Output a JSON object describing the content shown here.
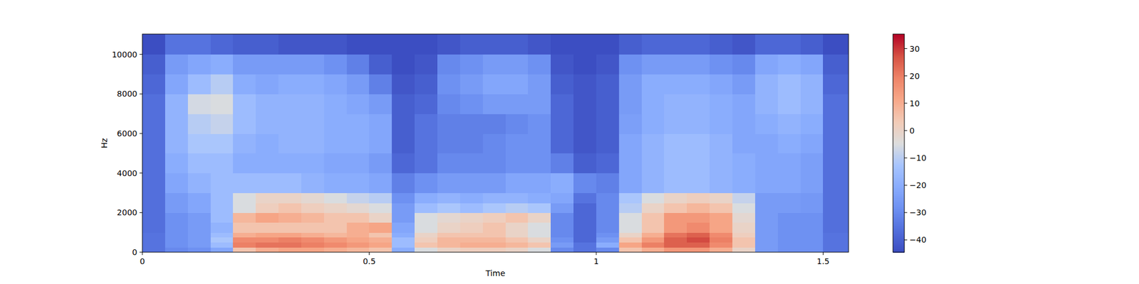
{
  "chart_data": {
    "type": "heatmap",
    "xlabel": "Time",
    "ylabel": "Hz",
    "color": "coolwarm",
    "xlim": [
      0,
      1.556
    ],
    "xticks": [
      0,
      0.5,
      1,
      1.5
    ],
    "ylim": [
      0,
      11025
    ],
    "yticks": [
      0,
      2000,
      4000,
      6000,
      8000,
      10000
    ],
    "x_edges": [
      0,
      0.05,
      0.1,
      0.15,
      0.2,
      0.25,
      0.3,
      0.35,
      0.4,
      0.45,
      0.5,
      0.55,
      0.6,
      0.65,
      0.7,
      0.75,
      0.8,
      0.85,
      0.9,
      0.95,
      1.0,
      1.05,
      1.1,
      1.15,
      1.2,
      1.25,
      1.3,
      1.35,
      1.4,
      1.45,
      1.5,
      1.556
    ],
    "y_edges": [
      0,
      250,
      500,
      750,
      1000,
      1500,
      2000,
      2500,
      3000,
      4000,
      5000,
      6000,
      7000,
      8000,
      9000,
      10000,
      11025
    ],
    "values": [
      [
        -35,
        -30,
        -28,
        -22,
        5,
        10,
        12,
        12,
        10,
        8,
        5,
        -20,
        -5,
        0,
        2,
        2,
        0,
        -5,
        -30,
        -35,
        -30,
        5,
        10,
        15,
        15,
        10,
        0,
        -25,
        -28,
        -28,
        -35
      ],
      [
        -35,
        -28,
        -25,
        -15,
        20,
        22,
        22,
        20,
        18,
        15,
        12,
        -15,
        5,
        8,
        10,
        10,
        8,
        5,
        -25,
        -35,
        -20,
        12,
        20,
        25,
        25,
        18,
        5,
        -25,
        -28,
        -28,
        -35
      ],
      [
        -35,
        -28,
        -25,
        -12,
        18,
        18,
        20,
        18,
        15,
        12,
        10,
        -15,
        2,
        8,
        8,
        8,
        5,
        0,
        -28,
        -38,
        -25,
        5,
        15,
        25,
        28,
        20,
        5,
        -25,
        -28,
        -28,
        -35
      ],
      [
        -35,
        -28,
        -25,
        -15,
        10,
        12,
        12,
        10,
        8,
        10,
        5,
        -20,
        0,
        5,
        5,
        5,
        0,
        -5,
        -30,
        -38,
        -28,
        0,
        10,
        22,
        25,
        18,
        2,
        -25,
        -28,
        -28,
        -35
      ],
      [
        -36,
        -28,
        -25,
        -18,
        5,
        5,
        5,
        5,
        5,
        10,
        12,
        -22,
        -5,
        0,
        2,
        5,
        0,
        -5,
        -30,
        -38,
        -30,
        -5,
        5,
        15,
        18,
        12,
        0,
        -25,
        -28,
        -28,
        -36
      ],
      [
        -36,
        -28,
        -25,
        -15,
        8,
        12,
        10,
        8,
        5,
        5,
        0,
        -25,
        -5,
        -2,
        0,
        2,
        5,
        0,
        -30,
        -38,
        -30,
        -5,
        5,
        15,
        15,
        12,
        -2,
        -25,
        -28,
        -28,
        -36
      ],
      [
        -36,
        -25,
        -22,
        -15,
        -5,
        2,
        5,
        2,
        0,
        -2,
        -5,
        -25,
        -15,
        -12,
        -15,
        -12,
        -10,
        -12,
        -25,
        -38,
        -30,
        -10,
        0,
        5,
        8,
        5,
        -5,
        -25,
        -25,
        -26,
        -36
      ],
      [
        -36,
        -25,
        -22,
        -15,
        -5,
        0,
        0,
        -2,
        -5,
        -8,
        -10,
        -28,
        -20,
        -18,
        -20,
        -18,
        -18,
        -20,
        -22,
        -35,
        -30,
        -12,
        -5,
        0,
        2,
        0,
        -8,
        -25,
        -25,
        -26,
        -36
      ],
      [
        -36,
        -22,
        -18,
        -15,
        -15,
        -15,
        -15,
        -18,
        -20,
        -20,
        -22,
        -32,
        -28,
        -25,
        -25,
        -25,
        -22,
        -22,
        -20,
        -30,
        -32,
        -22,
        -18,
        -15,
        -15,
        -18,
        -20,
        -22,
        -22,
        -24,
        -36
      ],
      [
        -36,
        -20,
        -15,
        -15,
        -20,
        -20,
        -20,
        -20,
        -22,
        -22,
        -25,
        -38,
        -35,
        -30,
        -30,
        -30,
        -28,
        -28,
        -32,
        -40,
        -38,
        -22,
        -18,
        -15,
        -15,
        -18,
        -20,
        -22,
        -22,
        -24,
        -36
      ],
      [
        -36,
        -18,
        -12,
        -12,
        -18,
        -20,
        -18,
        -18,
        -20,
        -20,
        -22,
        -40,
        -35,
        -32,
        -32,
        -30,
        -28,
        -28,
        -38,
        -42,
        -40,
        -22,
        -18,
        -15,
        -15,
        -18,
        -22,
        -22,
        -20,
        -22,
        -36
      ],
      [
        -36,
        -18,
        -10,
        -8,
        -15,
        -18,
        -18,
        -18,
        -20,
        -20,
        -22,
        -40,
        -35,
        -32,
        -32,
        -32,
        -30,
        -28,
        -38,
        -42,
        -40,
        -24,
        -20,
        -18,
        -18,
        -20,
        -22,
        -20,
        -18,
        -20,
        -36
      ],
      [
        -36,
        -18,
        -6,
        -5,
        -15,
        -18,
        -18,
        -18,
        -20,
        -22,
        -25,
        -40,
        -38,
        -30,
        -28,
        -25,
        -25,
        -25,
        -38,
        -42,
        -40,
        -25,
        -20,
        -18,
        -18,
        -20,
        -22,
        -18,
        -15,
        -18,
        -36
      ],
      [
        -38,
        -22,
        -15,
        -10,
        -20,
        -22,
        -20,
        -20,
        -22,
        -25,
        -32,
        -42,
        -40,
        -28,
        -25,
        -22,
        -22,
        -25,
        -40,
        -42,
        -40,
        -25,
        -20,
        -20,
        -20,
        -22,
        -25,
        -18,
        -15,
        -18,
        -38
      ],
      [
        -40,
        -25,
        -22,
        -20,
        -25,
        -25,
        -25,
        -25,
        -28,
        -32,
        -40,
        -44,
        -42,
        -30,
        -28,
        -25,
        -25,
        -28,
        -42,
        -44,
        -42,
        -28,
        -25,
        -25,
        -25,
        -28,
        -30,
        -22,
        -20,
        -22,
        -40
      ],
      [
        -44,
        -35,
        -35,
        -38,
        -40,
        -40,
        -42,
        -42,
        -42,
        -44,
        -44,
        -44,
        -44,
        -42,
        -40,
        -40,
        -40,
        -42,
        -44,
        -44,
        -44,
        -40,
        -38,
        -38,
        -38,
        -40,
        -42,
        -38,
        -38,
        -40,
        -44
      ]
    ],
    "colorbar_range": [
      -44.5,
      35.3
    ],
    "colorbar_ticks": [
      {
        "value": -40,
        "label": "−40"
      },
      {
        "value": -30,
        "label": "−30"
      },
      {
        "value": -20,
        "label": "−20"
      },
      {
        "value": -10,
        "label": "−10"
      },
      0,
      10,
      20,
      30
    ]
  }
}
